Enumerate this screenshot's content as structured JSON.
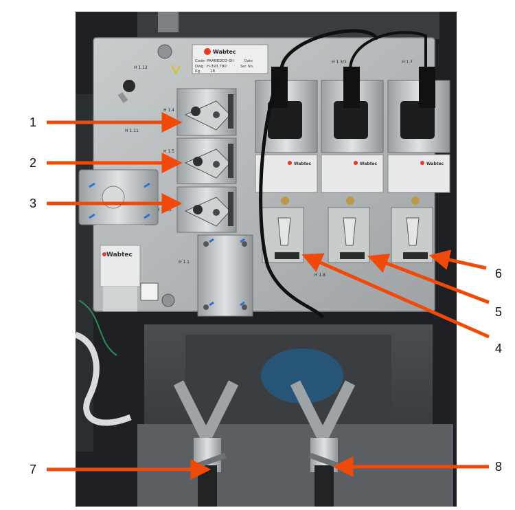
{
  "callouts": [
    {
      "number": "1",
      "target": "pilot-valve-h14"
    },
    {
      "number": "2",
      "target": "pilot-valve-h15"
    },
    {
      "number": "3",
      "target": "pilot-valve-h153"
    },
    {
      "number": "4",
      "target": "solenoid-valve-left"
    },
    {
      "number": "5",
      "target": "solenoid-valve-middle"
    },
    {
      "number": "6",
      "target": "solenoid-valve-right"
    },
    {
      "number": "7",
      "target": "ball-valve-left"
    },
    {
      "number": "8",
      "target": "ball-valve-right"
    }
  ],
  "plate": {
    "brand": "Wabtec",
    "code_label": "Code",
    "code_value": "PAANEDD3-00",
    "dwg_label": "Dwg",
    "dwg_value": "H-393,780",
    "date_label": "Date",
    "ser_label": "Ser. No.",
    "kg_label": "Kg",
    "kg_value": "18"
  },
  "component_tags": {
    "h112": "H 1.12",
    "h14": "H 1.4",
    "h111": "H 1.11",
    "h15": "H 1.5",
    "h153": "H 1.5.3",
    "h11": "H 1.1",
    "h18": "H 1.8",
    "h131": "H 1.3/1",
    "h17": "H 1.7"
  },
  "filter_label": {
    "brand": "Wabtec"
  },
  "solenoid_plates": {
    "brand": "Wabtec"
  },
  "colors": {
    "arrow": "#f04a0a",
    "panel": "#b9bcbd",
    "cabinet": "#1d1f21"
  }
}
